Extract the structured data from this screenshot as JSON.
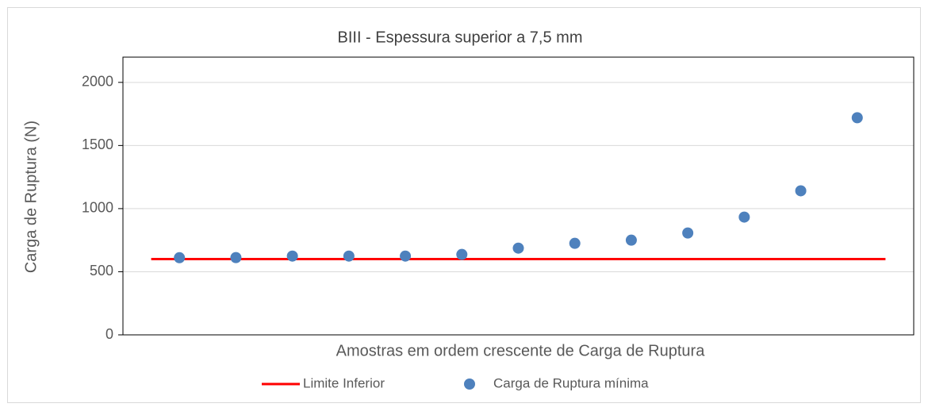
{
  "chart_data": {
    "type": "scatter",
    "title": "BIII - Espessura superior a 7,5 mm",
    "x_label": "Amostras em ordem crescente de Carga de Ruptura",
    "y_label": "Carga de Ruptura (N)",
    "xlim": [
      0,
      14
    ],
    "ylim": [
      0,
      2200
    ],
    "yticks": [
      0,
      500,
      1000,
      1500,
      2000
    ],
    "grid": true,
    "legend": "bottom",
    "series": [
      {
        "name": "Limite Inferior",
        "color": "#ff0000",
        "kind": "line",
        "x": [
          0.5,
          13.5
        ],
        "values": [
          600,
          600
        ]
      },
      {
        "name": "Carga de Ruptura mínima",
        "color": "#4e81bd",
        "kind": "points",
        "x": [
          1,
          2,
          3,
          4,
          5,
          6,
          7,
          8,
          9,
          10,
          11,
          12,
          13
        ],
        "values": [
          611,
          612,
          624,
          624,
          624,
          637,
          687,
          725,
          750,
          807,
          933,
          1141,
          1720
        ]
      }
    ]
  }
}
